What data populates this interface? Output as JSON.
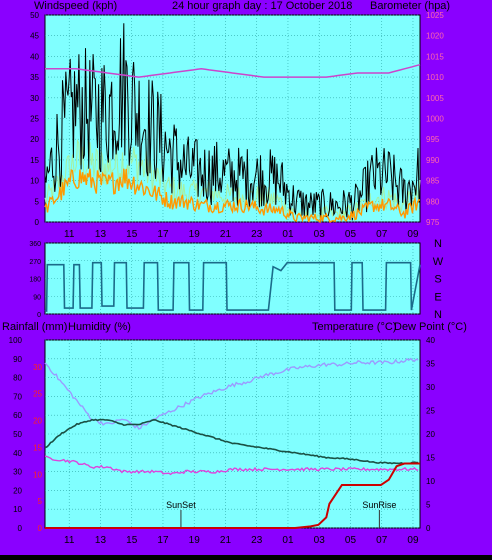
{
  "header": {
    "left_title": "Windspeed (kph)",
    "center_title": "24 hour graph day : 17 October 2018",
    "right_title": "Barometer (hpa)"
  },
  "middle_header": {
    "left_title": "Rainfall (mm)",
    "left_title2": "Humidity (%)",
    "right_title": "Temperature (°C)",
    "right_title2": "Dew Point (°C)"
  },
  "colors": {
    "frame": "#8a00ff",
    "plot_bg": "#80ffff",
    "grid": "#2ea7a7",
    "wind_gust": "#000000",
    "wind_avg": "#ff9900",
    "wind_lightgreen": "#a6f0a0",
    "barometer": "#cc44cc",
    "direction": "#1b6b8a",
    "temperature": "#1a5044",
    "humidity": "#9b9bff",
    "dewpoint": "#dd44dd",
    "rainfall": "#cc0000",
    "axis_left": "#000000",
    "axis_right": "#ff66aa"
  },
  "x_ticks": [
    "11",
    "13",
    "15",
    "17",
    "19",
    "21",
    "23",
    "01",
    "03",
    "05",
    "07",
    "09"
  ],
  "chart_data": [
    {
      "type": "line",
      "name": "wind-barometer-chart",
      "ylabel": "Windspeed (kph)",
      "y2label": "Barometer (hpa)",
      "ylim": [
        0,
        50
      ],
      "y2lim": [
        975,
        1025
      ],
      "yticks": [
        0,
        5,
        10,
        15,
        20,
        25,
        30,
        35,
        40,
        45,
        50
      ],
      "y2ticks": [
        975,
        980,
        985,
        990,
        995,
        1000,
        1005,
        1010,
        1015,
        1020,
        1025
      ],
      "grid": true,
      "series": [
        {
          "name": "Barometer",
          "axis": "right",
          "x": [
            0,
            2,
            4,
            6,
            8,
            10,
            12,
            14,
            16,
            18,
            20,
            22,
            24
          ],
          "values": [
            1012,
            1012,
            1011,
            1010,
            1011,
            1012,
            1011,
            1010,
            1010,
            1010,
            1011,
            1011,
            1013
          ]
        },
        {
          "name": "Wind Gust",
          "axis": "left",
          "x": [
            0,
            1,
            2,
            3,
            4,
            5,
            6,
            7,
            8,
            9,
            10,
            11,
            12,
            13,
            14,
            15,
            16,
            17,
            18,
            19,
            20,
            21,
            22,
            23,
            24
          ],
          "values": [
            9,
            21,
            28,
            26,
            27,
            33,
            26,
            22,
            17,
            13,
            12,
            12,
            11,
            11,
            11,
            10,
            5,
            4,
            4,
            4,
            5,
            11,
            11,
            7,
            12
          ]
        },
        {
          "name": "Wind Average",
          "axis": "left",
          "x": [
            0,
            1,
            2,
            3,
            4,
            5,
            6,
            7,
            8,
            9,
            10,
            11,
            12,
            13,
            14,
            15,
            16,
            17,
            18,
            19,
            20,
            21,
            22,
            23,
            24
          ],
          "values": [
            3,
            7,
            11,
            10,
            9,
            11,
            9,
            7,
            5,
            5,
            4,
            4,
            4,
            4,
            3,
            3,
            1,
            1,
            1,
            1,
            2,
            4,
            4,
            2,
            5
          ]
        },
        {
          "name": "Wind Speed",
          "axis": "left",
          "x": [
            0,
            1,
            2,
            3,
            4,
            5,
            6,
            7,
            8,
            9,
            10,
            11,
            12,
            13,
            14,
            15,
            16,
            17,
            18,
            19,
            20,
            21,
            22,
            23,
            24
          ],
          "values": [
            5,
            10,
            15,
            14,
            13,
            15,
            14,
            11,
            8,
            7,
            7,
            7,
            6,
            6,
            6,
            5,
            2,
            2,
            2,
            2,
            3,
            6,
            6,
            4,
            7
          ]
        }
      ]
    },
    {
      "type": "line",
      "name": "wind-direction-chart",
      "y2tick_labels": [
        "N",
        "W",
        "S",
        "E",
        "N"
      ],
      "ylim": [
        0,
        360
      ],
      "yticks": [
        0,
        90,
        180,
        270,
        360
      ],
      "grid": true,
      "series": [
        {
          "name": "Wind Direction",
          "x": [
            0,
            0.1,
            0.15,
            1.2,
            1.25,
            1.8,
            1.85,
            2.2,
            2.25,
            3.0,
            3.05,
            3.6,
            3.65,
            4.4,
            4.45,
            5.2,
            5.25,
            6.3,
            6.35,
            7.2,
            7.25,
            8.2,
            8.25,
            9.2,
            9.25,
            10.1,
            10.15,
            11.6,
            11.65,
            12.6,
            12.65,
            14.3,
            14.6,
            15.1,
            15.5,
            18.5,
            18.55,
            19.6,
            19.65,
            20.3,
            20.35,
            21.8,
            21.85,
            23.4,
            23.45,
            24
          ],
          "values": [
            20,
            15,
            250,
            250,
            30,
            30,
            250,
            250,
            30,
            30,
            260,
            260,
            40,
            40,
            260,
            260,
            30,
            30,
            260,
            260,
            20,
            20,
            260,
            260,
            20,
            20,
            260,
            260,
            20,
            20,
            20,
            20,
            240,
            220,
            260,
            260,
            20,
            20,
            260,
            260,
            20,
            20,
            260,
            260,
            20,
            250
          ]
        }
      ]
    },
    {
      "type": "line",
      "name": "temperature-humidity-chart",
      "ylabel": "Rainfall (mm) / Humidity (%)",
      "y2label": "Temperature (°C) / Dew Point (°C)",
      "ylim": [
        0,
        100
      ],
      "yticks": [
        0,
        10,
        20,
        30,
        40,
        50,
        60,
        70,
        80,
        90,
        100
      ],
      "rain_ticks": [
        0,
        5,
        10,
        15,
        20,
        25,
        30
      ],
      "rainlim": [
        0,
        35
      ],
      "y2lim": [
        0,
        40
      ],
      "y2ticks": [
        0,
        5,
        10,
        15,
        20,
        25,
        30,
        35,
        40
      ],
      "grid": true,
      "annotations": [
        {
          "text": "SunSet",
          "x": 8.7
        },
        {
          "text": "SunRise",
          "x": 21.4
        }
      ],
      "series": [
        {
          "name": "Humidity",
          "axis": "left",
          "x": [
            0,
            1,
            2,
            3,
            4,
            5,
            6,
            7,
            8,
            9,
            10,
            11,
            12,
            13,
            14,
            15,
            16,
            17,
            18,
            19,
            20,
            21,
            22,
            23,
            24
          ],
          "values": [
            88,
            78,
            68,
            58,
            55,
            58,
            53,
            58,
            62,
            66,
            70,
            73,
            76,
            78,
            81,
            83,
            85,
            86,
            87,
            87,
            88,
            88,
            88,
            89,
            90
          ]
        },
        {
          "name": "Temperature",
          "axis": "right",
          "x": [
            0,
            1,
            2,
            3,
            4,
            5,
            6,
            7,
            8,
            9,
            10,
            11,
            12,
            13,
            14,
            15,
            16,
            17,
            18,
            19,
            20,
            21,
            22,
            23,
            24
          ],
          "values": [
            17,
            20,
            22,
            23,
            23,
            22,
            22,
            23,
            22,
            21,
            20,
            19,
            18,
            17.5,
            17,
            16.5,
            16,
            15.5,
            15,
            14.8,
            14.5,
            14,
            13.8,
            13.8,
            14
          ]
        },
        {
          "name": "Dew Point",
          "axis": "right",
          "x": [
            0,
            1,
            2,
            3,
            4,
            5,
            6,
            7,
            8,
            9,
            10,
            11,
            12,
            13,
            14,
            15,
            16,
            17,
            18,
            19,
            20,
            21,
            22,
            23,
            24
          ],
          "values": [
            15,
            14.5,
            14,
            13,
            13,
            12,
            12,
            12,
            11.5,
            12,
            12,
            12,
            12.5,
            12.5,
            12.5,
            12.5,
            12.5,
            12.5,
            12.5,
            12.5,
            12.5,
            12.5,
            12.5,
            12.5,
            12.5
          ]
        },
        {
          "name": "Rainfall",
          "axis": "rain",
          "x": [
            0,
            15.5,
            16,
            17,
            17.5,
            18,
            18.2,
            19,
            20,
            21,
            21.5,
            22,
            22.5,
            23,
            23.3,
            24
          ],
          "values": [
            0,
            0,
            0,
            0.3,
            0.6,
            2,
            4.5,
            8,
            8,
            8,
            8,
            9,
            11.5,
            12,
            12,
            12
          ]
        }
      ]
    }
  ]
}
